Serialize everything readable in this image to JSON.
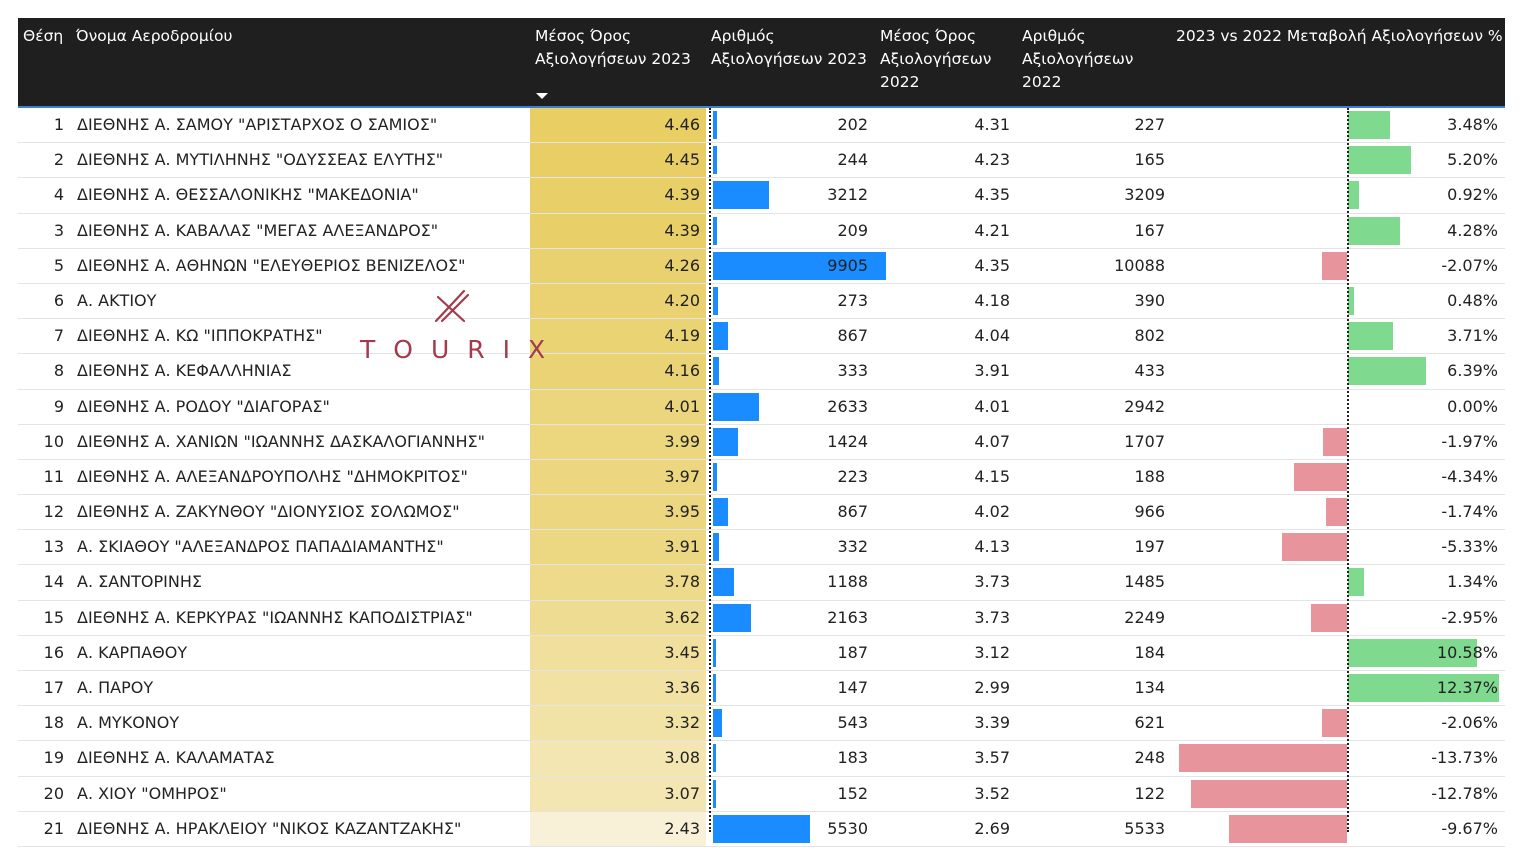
{
  "chart_data": {
    "type": "table",
    "columns": [
      "Θέση",
      "Όνομα Αεροδρομίου",
      "Μέσος Όρος Αξιολογήσεων 2023",
      "Αριθμός Αξιολογήσεων 2023",
      "Μέσος Όρος Αξιολογήσεων 2022",
      "Αριθμός Αξιολογήσεων 2022",
      "2023 vs 2022 Μεταβολή Αξιολογήσεων %"
    ],
    "sorted_by": "Μέσος Όρος Αξιολογήσεων 2023",
    "rows": [
      {
        "rank": "1",
        "name": "ΔΙΕΘΝΗΣ Α. ΣΑΜΟΥ \"ΑΡΙΣΤΑΡΧΟΣ Ο ΣΑΜΙΟΣ\"",
        "avg2023": "4.46",
        "count2023": "202",
        "avg2022": "4.31",
        "count2022": "227",
        "change": "3.48%"
      },
      {
        "rank": "2",
        "name": "ΔΙΕΘΝΗΣ Α. ΜΥΤΙΛΗΝΗΣ \"ΟΔΥΣΣΕΑΣ ΕΛΥΤΗΣ\"",
        "avg2023": "4.45",
        "count2023": "244",
        "avg2022": "4.23",
        "count2022": "165",
        "change": "5.20%"
      },
      {
        "rank": "4",
        "name": "ΔΙΕΘΝΗΣ Α. ΘΕΣΣΑΛΟΝΙΚΗΣ \"ΜΑΚΕΔΟΝΙΑ\"",
        "avg2023": "4.39",
        "count2023": "3212",
        "avg2022": "4.35",
        "count2022": "3209",
        "change": "0.92%"
      },
      {
        "rank": "3",
        "name": "ΔΙΕΘΝΗΣ Α. ΚΑΒΑΛΑΣ \"ΜΕΓΑΣ ΑΛΕΞΑΝΔΡΟΣ\"",
        "avg2023": "4.39",
        "count2023": "209",
        "avg2022": "4.21",
        "count2022": "167",
        "change": "4.28%"
      },
      {
        "rank": "5",
        "name": "ΔΙΕΘΝΗΣ Α. ΑΘΗΝΩΝ \"ΕΛΕΥΘΕΡΙΟΣ ΒΕΝΙΖΕΛΟΣ\"",
        "avg2023": "4.26",
        "count2023": "9905",
        "avg2022": "4.35",
        "count2022": "10088",
        "change": "-2.07%"
      },
      {
        "rank": "6",
        "name": "Α. ΑΚΤΙΟΥ",
        "avg2023": "4.20",
        "count2023": "273",
        "avg2022": "4.18",
        "count2022": "390",
        "change": "0.48%"
      },
      {
        "rank": "7",
        "name": "ΔΙΕΘΝΗΣ Α. ΚΩ \"ΙΠΠΟΚΡΑΤΗΣ\"",
        "avg2023": "4.19",
        "count2023": "867",
        "avg2022": "4.04",
        "count2022": "802",
        "change": "3.71%"
      },
      {
        "rank": "8",
        "name": "ΔΙΕΘΝΗΣ Α. ΚΕΦΑΛΛΗΝΙΑΣ",
        "avg2023": "4.16",
        "count2023": "333",
        "avg2022": "3.91",
        "count2022": "433",
        "change": "6.39%"
      },
      {
        "rank": "9",
        "name": "ΔΙΕΘΝΗΣ Α. ΡΟΔΟΥ \"ΔΙΑΓΟΡΑΣ\"",
        "avg2023": "4.01",
        "count2023": "2633",
        "avg2022": "4.01",
        "count2022": "2942",
        "change": "0.00%"
      },
      {
        "rank": "10",
        "name": "ΔΙΕΘΝΗΣ Α. ΧΑΝΙΩΝ \"ΙΩΑΝΝΗΣ ΔΑΣΚΑΛΟΓΙΑΝΝΗΣ\"",
        "avg2023": "3.99",
        "count2023": "1424",
        "avg2022": "4.07",
        "count2022": "1707",
        "change": "-1.97%"
      },
      {
        "rank": "11",
        "name": "ΔΙΕΘΝΗΣ Α. ΑΛΕΞΑΝΔΡΟΥΠΟΛΗΣ \"ΔΗΜΟΚΡΙΤΟΣ\"",
        "avg2023": "3.97",
        "count2023": "223",
        "avg2022": "4.15",
        "count2022": "188",
        "change": "-4.34%"
      },
      {
        "rank": "12",
        "name": "ΔΙΕΘΝΗΣ Α. ΖΑΚΥΝΘΟΥ \"ΔΙΟΝΥΣΙΟΣ ΣΟΛΩΜΟΣ\"",
        "avg2023": "3.95",
        "count2023": "867",
        "avg2022": "4.02",
        "count2022": "966",
        "change": "-1.74%"
      },
      {
        "rank": "13",
        "name": "Α. ΣΚΙΑΘΟΥ \"ΑΛΕΞΑΝΔΡΟΣ ΠΑΠΑΔΙΑΜΑΝΤΗΣ\"",
        "avg2023": "3.91",
        "count2023": "332",
        "avg2022": "4.13",
        "count2022": "197",
        "change": "-5.33%"
      },
      {
        "rank": "14",
        "name": "Α. ΣΑΝΤΟΡΙΝΗΣ",
        "avg2023": "3.78",
        "count2023": "1188",
        "avg2022": "3.73",
        "count2022": "1485",
        "change": "1.34%"
      },
      {
        "rank": "15",
        "name": "ΔΙΕΘΝΗΣ Α. ΚΕΡΚΥΡΑΣ \"ΙΩΑΝΝΗΣ ΚΑΠΟΔΙΣΤΡΙΑΣ\"",
        "avg2023": "3.62",
        "count2023": "2163",
        "avg2022": "3.73",
        "count2022": "2249",
        "change": "-2.95%"
      },
      {
        "rank": "16",
        "name": "Α. ΚΑΡΠΑΘΟΥ",
        "avg2023": "3.45",
        "count2023": "187",
        "avg2022": "3.12",
        "count2022": "184",
        "change": "10.58%"
      },
      {
        "rank": "17",
        "name": "Α. ΠΑΡΟΥ",
        "avg2023": "3.36",
        "count2023": "147",
        "avg2022": "2.99",
        "count2022": "134",
        "change": "12.37%"
      },
      {
        "rank": "18",
        "name": "Α. ΜΥΚΟΝΟΥ",
        "avg2023": "3.32",
        "count2023": "543",
        "avg2022": "3.39",
        "count2022": "621",
        "change": "-2.06%"
      },
      {
        "rank": "19",
        "name": "ΔΙΕΘΝΗΣ Α. ΚΑΛΑΜΑΤΑΣ",
        "avg2023": "3.08",
        "count2023": "183",
        "avg2022": "3.57",
        "count2022": "248",
        "change": "-13.73%"
      },
      {
        "rank": "20",
        "name": "Α. ΧΙΟΥ \"ΟΜΗΡΟΣ\"",
        "avg2023": "3.07",
        "count2023": "152",
        "avg2022": "3.52",
        "count2022": "122",
        "change": "-12.78%"
      },
      {
        "rank": "21",
        "name": "ΔΙΕΘΝΗΣ Α. ΗΡΑΚΛΕΙΟΥ \"ΝΙΚΟΣ ΚΑΖΑΝΤΖΑΚΗΣ\"",
        "avg2023": "2.43",
        "count2023": "5530",
        "avg2022": "2.69",
        "count2022": "5533",
        "change": "-9.67%"
      }
    ],
    "colors": {
      "header_bg": "#1f1f1f",
      "avg_high": "#e8ce63",
      "avg_low": "#f8f1d8",
      "count_bar": "#1a8cff",
      "positive": "#7fd98f",
      "negative": "#e8949c"
    }
  },
  "watermark": {
    "text": "TOURIX",
    "color": "#a33b4c"
  }
}
